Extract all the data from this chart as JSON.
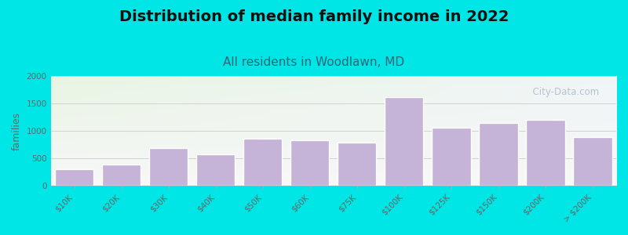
{
  "title": "Distribution of median family income in 2022",
  "subtitle": "All residents in Woodlawn, MD",
  "ylabel": "families",
  "categories": [
    "$10K",
    "$20K",
    "$30K",
    "$40K",
    "$50K",
    "$60K",
    "$75K",
    "$100K",
    "$125K",
    "$150K",
    "$200K",
    "> $200K"
  ],
  "values": [
    300,
    390,
    680,
    570,
    860,
    830,
    780,
    1620,
    1060,
    1150,
    1200,
    880
  ],
  "bar_color": "#c5b3d8",
  "bar_edge_color": "white",
  "background_outer": "#00e5e5",
  "ylim": [
    0,
    2000
  ],
  "yticks": [
    0,
    500,
    1000,
    1500,
    2000
  ],
  "title_fontsize": 14,
  "subtitle_fontsize": 11,
  "ylabel_fontsize": 9,
  "watermark_text": "  City-Data.com",
  "watermark_color": "#aabbcc",
  "grid_color": "#cccccc",
  "tick_color": "#666666",
  "subtitle_color": "#336677"
}
